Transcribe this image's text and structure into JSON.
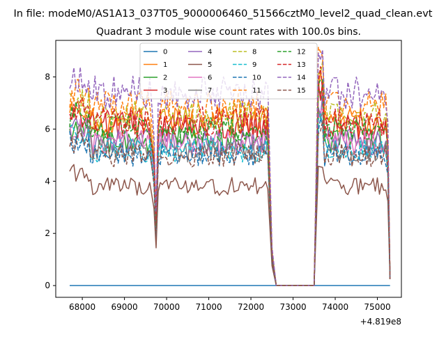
{
  "header": {
    "suptitle": "In file: modeM0/AS1A13_037T05_9000006460_51566cztM0_level2_quad_clean.evt",
    "title": "Quadrant 3 module wise count rates with 100.0s bins."
  },
  "chart_data": {
    "type": "line",
    "x_offset_label": "+4.819e8",
    "xlim": [
      67370,
      75570
    ],
    "ylim": [
      -0.45,
      9.4
    ],
    "x_ticks": [
      68000,
      69000,
      70000,
      71000,
      72000,
      73000,
      74000,
      75000
    ],
    "x_tick_labels": [
      "68000",
      "69000",
      "70000",
      "71000",
      "72000",
      "73000",
      "74000",
      "75000"
    ],
    "y_ticks": [
      0,
      2,
      4,
      6,
      8
    ],
    "y_tick_labels": [
      "0",
      "2",
      "4",
      "6",
      "8"
    ],
    "grid": false,
    "legend_position": "top-center",
    "legend_columns": 4,
    "segments": {
      "seg1": [
        67700,
        69600
      ],
      "dip": [
        69700,
        69750,
        69800
      ],
      "seg2": [
        69850,
        72400
      ],
      "gap_zero": [
        72600,
        73500
      ],
      "seg3": [
        73600,
        75200
      ],
      "end": 75300
    },
    "series": [
      {
        "name": "0",
        "color": "#1f77b4",
        "dashed": false,
        "level": 0.0,
        "flat_zero": true
      },
      {
        "name": "1",
        "color": "#ff7f0e",
        "dashed": false,
        "level": 6.3
      },
      {
        "name": "2",
        "color": "#2ca02c",
        "dashed": false,
        "level": 5.6
      },
      {
        "name": "3",
        "color": "#d62728",
        "dashed": false,
        "level": 6.1
      },
      {
        "name": "4",
        "color": "#9467bd",
        "dashed": false,
        "level": 5.5
      },
      {
        "name": "5",
        "color": "#8c564b",
        "dashed": false,
        "level": 3.8
      },
      {
        "name": "6",
        "color": "#e377c2",
        "dashed": false,
        "level": 5.5
      },
      {
        "name": "7",
        "color": "#7f7f7f",
        "dashed": false,
        "level": 5.2
      },
      {
        "name": "8",
        "color": "#bcbd22",
        "dashed": true,
        "level": 6.5
      },
      {
        "name": "9",
        "color": "#17becf",
        "dashed": true,
        "level": 5.2
      },
      {
        "name": "10",
        "color": "#1f77b4",
        "dashed": true,
        "level": 5.0
      },
      {
        "name": "11",
        "color": "#ff7f0e",
        "dashed": true,
        "level": 6.9
      },
      {
        "name": "12",
        "color": "#2ca02c",
        "dashed": true,
        "level": 6.0
      },
      {
        "name": "13",
        "color": "#d62728",
        "dashed": true,
        "level": 6.3
      },
      {
        "name": "14",
        "color": "#9467bd",
        "dashed": true,
        "level": 7.4
      },
      {
        "name": "15",
        "color": "#8c564b",
        "dashed": true,
        "level": 5.0
      }
    ]
  }
}
